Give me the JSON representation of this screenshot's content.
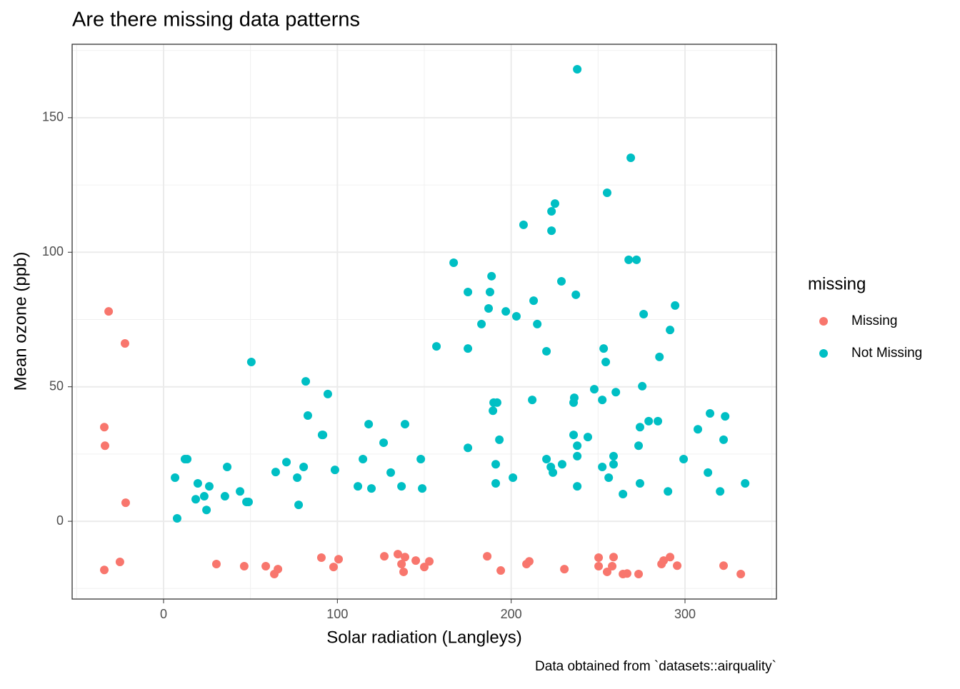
{
  "chart_data": {
    "type": "scatter",
    "title": "Are there missing data patterns",
    "x_label": "Solar radiation (Langleys)",
    "y_label": "Mean ozone (ppb)",
    "caption": "Data obtained from `datasets::airquality`",
    "legend_title": "missing",
    "legend_position": "right",
    "grid": true,
    "xlim": [
      -52.6,
      352.6
    ],
    "ylim": [
      -28.9,
      177.3
    ],
    "xticks": [
      0,
      100,
      200,
      300
    ],
    "yticks": [
      0,
      50,
      100,
      150
    ],
    "x_minor_ticks": [
      -50,
      50,
      150,
      250,
      350
    ],
    "y_minor_ticks": [
      -25,
      25,
      75,
      125,
      175
    ],
    "series": [
      {
        "name": "Missing",
        "color": "#F8766D",
        "x": [
          -34.1,
          -34.1,
          -33.7,
          -31.6,
          -25.1,
          -22.2,
          -21.8,
          30.4,
          46.4,
          58.8,
          63.7,
          65.8,
          90.8,
          97.8,
          100.7,
          127.0,
          134.8,
          136.9,
          138.1,
          138.9,
          145.1,
          150.0,
          152.9,
          186.2,
          194.0,
          208.8,
          210.4,
          230.6,
          250.3,
          250.3,
          255.2,
          258.1,
          258.9,
          264.3,
          266.7,
          273.3,
          286.5,
          287.7,
          291.4,
          295.5,
          322.2,
          332.1
        ],
        "values": [
          -18.1,
          35.0,
          28.1,
          78.0,
          -15.1,
          66.1,
          6.9,
          -15.9,
          -16.7,
          -16.7,
          -19.6,
          -17.8,
          -13.5,
          -17.0,
          -14.1,
          -13.0,
          -12.2,
          -15.9,
          -18.8,
          -13.3,
          -14.6,
          -17.0,
          -14.9,
          -13.0,
          -18.3,
          -15.9,
          -14.9,
          -17.8,
          -13.5,
          -16.7,
          -18.8,
          -16.7,
          -13.3,
          -19.6,
          -19.4,
          -19.6,
          -15.9,
          -14.6,
          -13.3,
          -16.5,
          -16.5,
          -19.6
        ]
      },
      {
        "name": "Not Missing",
        "color": "#00BFC4",
        "x": [
          6.6,
          7.8,
          12.3,
          13.6,
          18.5,
          19.7,
          23.4,
          24.7,
          26.3,
          35.3,
          36.6,
          44.0,
          47.7,
          48.9,
          50.5,
          64.5,
          70.7,
          76.9,
          77.7,
          80.6,
          81.8,
          83.0,
          91.2,
          91.7,
          94.5,
          98.6,
          111.8,
          114.7,
          118.0,
          119.6,
          126.6,
          130.7,
          136.9,
          138.9,
          148.0,
          148.8,
          157.0,
          166.9,
          175.1,
          175.1,
          175.1,
          182.9,
          187.0,
          187.8,
          188.7,
          189.5,
          189.9,
          191.9,
          191.1,
          191.1,
          193.2,
          196.9,
          201.0,
          203.0,
          207.1,
          212.1,
          212.9,
          215.0,
          220.3,
          220.3,
          222.8,
          223.2,
          223.2,
          224.0,
          225.2,
          229.3,
          228.9,
          235.9,
          236.3,
          235.9,
          237.2,
          238.0,
          238.0,
          238.0,
          238.0,
          244.1,
          247.8,
          252.4,
          252.4,
          253.2,
          254.4,
          255.2,
          256.1,
          258.9,
          258.9,
          260.2,
          264.3,
          267.6,
          268.8,
          272.1,
          273.3,
          274.1,
          274.1,
          275.4,
          276.2,
          279.1,
          284.4,
          285.3,
          290.2,
          291.4,
          294.3,
          299.2,
          307.4,
          313.2,
          314.4,
          320.2,
          322.2,
          323.1,
          334.6
        ],
        "values": [
          16.2,
          1.1,
          23.1,
          23.1,
          8.2,
          14.1,
          9.3,
          4.2,
          13.0,
          9.3,
          20.2,
          11.1,
          7.2,
          7.2,
          59.2,
          18.3,
          22.0,
          16.2,
          6.1,
          20.2,
          52.0,
          39.3,
          32.1,
          32.1,
          47.3,
          19.1,
          13.0,
          23.1,
          36.1,
          12.2,
          29.2,
          18.1,
          13.0,
          36.1,
          23.1,
          12.2,
          65.0,
          96.1,
          27.3,
          64.2,
          85.2,
          73.3,
          79.1,
          85.2,
          91.1,
          41.1,
          44.1,
          44.1,
          21.2,
          14.1,
          30.3,
          78.0,
          16.2,
          76.2,
          110.2,
          45.1,
          82.0,
          73.3,
          63.2,
          23.1,
          20.2,
          115.2,
          108.0,
          18.1,
          118.1,
          21.2,
          89.2,
          44.1,
          45.9,
          32.1,
          84.2,
          168.0,
          28.1,
          24.2,
          13.0,
          31.3,
          49.1,
          45.1,
          20.2,
          64.2,
          59.2,
          122.1,
          16.2,
          24.2,
          21.2,
          48.0,
          10.1,
          97.2,
          135.1,
          97.2,
          28.1,
          35.0,
          14.1,
          50.2,
          77.0,
          37.2,
          37.2,
          61.1,
          11.1,
          71.1,
          80.2,
          23.1,
          34.2,
          18.1,
          40.1,
          11.1,
          30.3,
          39.0,
          14.1
        ]
      }
    ]
  }
}
